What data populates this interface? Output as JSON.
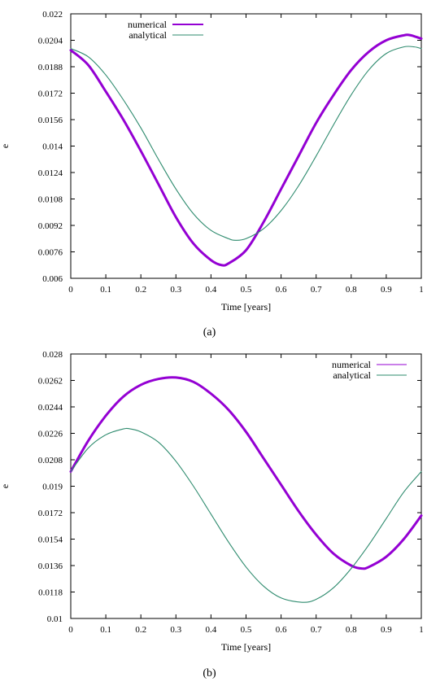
{
  "chart_data": [
    {
      "type": "line",
      "caption": "(a)",
      "xlabel": "Time [years]",
      "ylabel": "e",
      "xlim": [
        0,
        1
      ],
      "ylim": [
        0.006,
        0.022
      ],
      "xticks": [
        "0",
        "0.1",
        "0.2",
        "0.3",
        "0.4",
        "0.5",
        "0.6",
        "0.7",
        "0.8",
        "0.9",
        "1"
      ],
      "yticks": [
        "0.006",
        "0.0076",
        "0.0092",
        "0.0108",
        "0.0124",
        "0.014",
        "0.0156",
        "0.0172",
        "0.0188",
        "0.0204",
        "0.022"
      ],
      "legend_position": "top-left",
      "series": [
        {
          "name": "numerical",
          "color": "#9400d3",
          "x": [
            0,
            0.05,
            0.1,
            0.15,
            0.2,
            0.25,
            0.3,
            0.35,
            0.4,
            0.43,
            0.45,
            0.5,
            0.55,
            0.6,
            0.65,
            0.7,
            0.75,
            0.8,
            0.85,
            0.9,
            0.95,
            0.97,
            1.0
          ],
          "y": [
            0.0198,
            0.0189,
            0.0173,
            0.0156,
            0.0137,
            0.0117,
            0.0097,
            0.0081,
            0.0071,
            0.0068,
            0.0069,
            0.0077,
            0.0094,
            0.0114,
            0.0134,
            0.0154,
            0.0171,
            0.0186,
            0.0197,
            0.0204,
            0.0207,
            0.0207,
            0.0205
          ]
        },
        {
          "name": "analytical",
          "color": "#2e8b6e",
          "x": [
            0,
            0.05,
            0.1,
            0.15,
            0.2,
            0.25,
            0.3,
            0.35,
            0.4,
            0.45,
            0.47,
            0.5,
            0.55,
            0.6,
            0.65,
            0.7,
            0.75,
            0.8,
            0.85,
            0.9,
            0.95,
            0.98,
            1.0
          ],
          "y": [
            0.0199,
            0.0194,
            0.0183,
            0.0168,
            0.0151,
            0.0132,
            0.0114,
            0.0099,
            0.0089,
            0.0084,
            0.0083,
            0.0084,
            0.009,
            0.0101,
            0.0116,
            0.0134,
            0.0153,
            0.0171,
            0.0186,
            0.0196,
            0.02,
            0.02,
            0.0199
          ]
        }
      ]
    },
    {
      "type": "line",
      "caption": "(b)",
      "xlabel": "Time [years]",
      "ylabel": "e",
      "xlim": [
        0,
        1
      ],
      "ylim": [
        0.01,
        0.028
      ],
      "xticks": [
        "0",
        "0.1",
        "0.2",
        "0.3",
        "0.4",
        "0.5",
        "0.6",
        "0.7",
        "0.8",
        "0.9",
        "1"
      ],
      "yticks": [
        "0.01",
        "0.0118",
        "0.0136",
        "0.0154",
        "0.0172",
        "0.019",
        "0.0208",
        "0.0226",
        "0.0244",
        "0.0262",
        "0.028"
      ],
      "legend_position": "top-right",
      "series": [
        {
          "name": "numerical",
          "color": "#9400d3",
          "x": [
            0,
            0.05,
            0.1,
            0.15,
            0.2,
            0.25,
            0.3,
            0.35,
            0.4,
            0.45,
            0.5,
            0.55,
            0.6,
            0.65,
            0.7,
            0.75,
            0.8,
            0.83,
            0.85,
            0.9,
            0.95,
            1.0
          ],
          "y": [
            0.02,
            0.0221,
            0.0238,
            0.0251,
            0.0259,
            0.0263,
            0.0264,
            0.0261,
            0.0253,
            0.0242,
            0.0227,
            0.0209,
            0.0191,
            0.0173,
            0.0157,
            0.0144,
            0.0136,
            0.0134,
            0.0135,
            0.0142,
            0.0154,
            0.017
          ]
        },
        {
          "name": "analytical",
          "color": "#2e8b6e",
          "x": [
            0,
            0.05,
            0.1,
            0.15,
            0.17,
            0.2,
            0.25,
            0.3,
            0.35,
            0.4,
            0.45,
            0.5,
            0.55,
            0.6,
            0.66,
            0.7,
            0.75,
            0.8,
            0.85,
            0.9,
            0.95,
            1.0
          ],
          "y": [
            0.02,
            0.0216,
            0.0225,
            0.0229,
            0.0229,
            0.0227,
            0.022,
            0.0207,
            0.019,
            0.0171,
            0.0152,
            0.0135,
            0.0122,
            0.0114,
            0.0111,
            0.0113,
            0.0121,
            0.0134,
            0.015,
            0.0168,
            0.0186,
            0.02
          ]
        }
      ]
    }
  ]
}
